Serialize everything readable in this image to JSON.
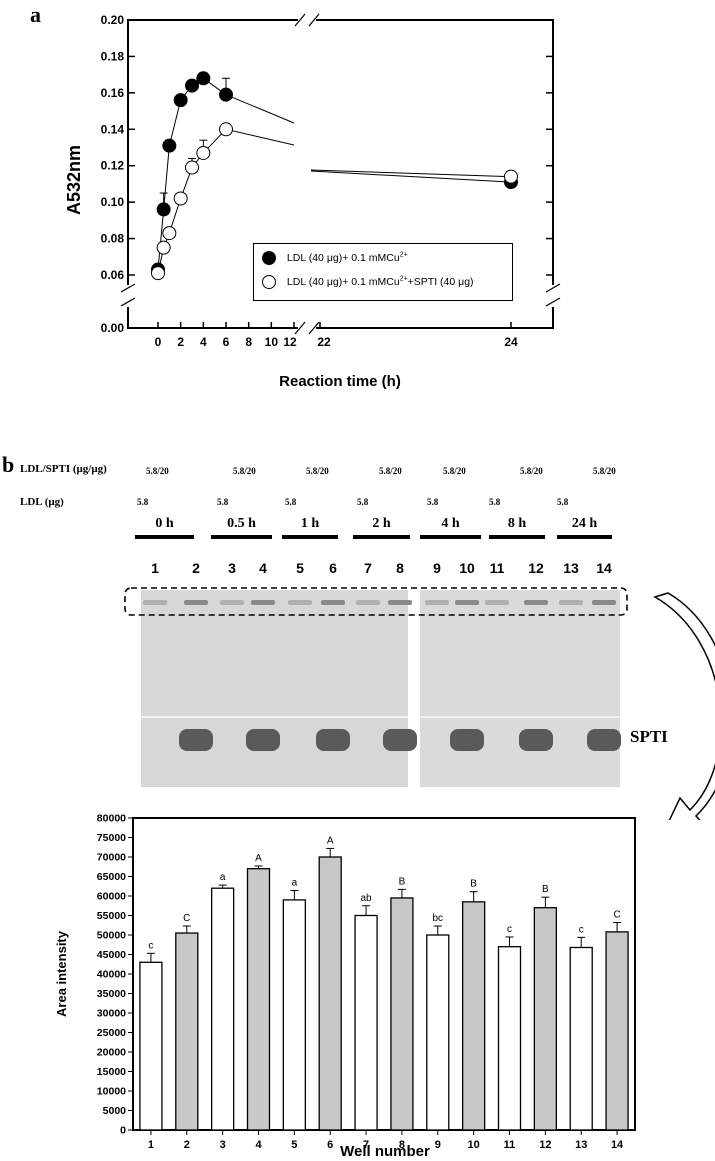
{
  "panel_a": {
    "label": "a",
    "chart_data": {
      "type": "line",
      "ylabel": "A532nm",
      "xlabel": "Reaction time (h)",
      "y_ticks": [
        "0.00",
        "0.06",
        "0.08",
        "0.10",
        "0.12",
        "0.14",
        "0.16",
        "0.18",
        "0.20"
      ],
      "x_ticks": [
        "0",
        "2",
        "4",
        "6",
        "8",
        "10",
        "12",
        "22",
        "24"
      ],
      "legend_position": "lower-right",
      "series": [
        {
          "name": "LDL (40 μg)+ 0.1 mMCu2+",
          "marker": "filled-circle",
          "color": "#000000",
          "x": [
            0,
            0.5,
            1,
            2,
            3,
            4,
            6,
            24
          ],
          "y": [
            0.063,
            0.096,
            0.131,
            0.156,
            0.164,
            0.168,
            0.159,
            0.111
          ],
          "err": [
            0.002,
            0.009,
            0.003,
            0.002,
            0.003,
            0.003,
            0.009,
            0.002
          ]
        },
        {
          "name": "LDL (40 μg)+ 0.1 mMCu2++SPTI (40 μg)",
          "marker": "open-circle",
          "color": "#000000",
          "x": [
            0,
            0.5,
            1,
            2,
            3,
            4,
            6,
            24
          ],
          "y": [
            0.061,
            0.075,
            0.083,
            0.102,
            0.119,
            0.127,
            0.14,
            0.114
          ],
          "err": [
            0.002,
            0.003,
            0.002,
            0.002,
            0.005,
            0.007,
            0.002,
            0.002
          ]
        }
      ]
    },
    "legend": {
      "s1_prefix": "LDL (40 ",
      "s1_mu": "μg)+ 0.1 mMCu",
      "s1_sup": "2+",
      "s2_prefix": "LDL (40 ",
      "s2_mu": "μg)+ 0.1 mMCu",
      "s2_sup": "2+",
      "s2_suffix": "+SPTI (40 μg)"
    }
  },
  "panel_b": {
    "label": "b",
    "row1_label": "LDL/SPTI (μg/μg)",
    "row2_label": "LDL (μg)",
    "ratio_values": [
      "5.8/20",
      "5.8/20",
      "5.8/20",
      "5.8/20",
      "5.8/20",
      "5.8/20",
      "5.8/20"
    ],
    "ldl_values": [
      "5.8",
      "5.8",
      "5.8",
      "5.8",
      "5.8",
      "5.8",
      "5.8"
    ],
    "time_groups": [
      "0 h",
      "0.5 h",
      "1 h",
      "2 h",
      "4 h",
      "8 h",
      "24 h"
    ],
    "lanes": [
      "1",
      "2",
      "3",
      "4",
      "5",
      "6",
      "7",
      "8",
      "9",
      "10",
      "11",
      "12",
      "13",
      "14"
    ],
    "band_label": "SPTI"
  },
  "panel_c": {
    "chart_data": {
      "type": "bar",
      "ylabel": "Area intensity",
      "xlabel": "Well number",
      "ylim": [
        0,
        80000
      ],
      "y_ticks": [
        "0",
        "5000",
        "10000",
        "15000",
        "20000",
        "25000",
        "30000",
        "35000",
        "40000",
        "45000",
        "50000",
        "55000",
        "60000",
        "65000",
        "70000",
        "75000",
        "80000"
      ],
      "categories": [
        "1",
        "2",
        "3",
        "4",
        "5",
        "6",
        "7",
        "8",
        "9",
        "10",
        "11",
        "12",
        "13",
        "14"
      ],
      "values": [
        43000,
        50500,
        62000,
        67000,
        59000,
        70000,
        55000,
        59500,
        50000,
        58500,
        47000,
        57000,
        46800,
        50800
      ],
      "errors": [
        2300,
        1800,
        800,
        700,
        2400,
        2200,
        2500,
        2200,
        2300,
        2600,
        2500,
        2700,
        2600,
        2400
      ],
      "letters": [
        "c",
        "C",
        "a",
        "A",
        "a",
        "A",
        "ab",
        "B",
        "bc",
        "B",
        "c",
        "B",
        "c",
        "C"
      ],
      "fill_colors": {
        "odd": "#ffffff",
        "even": "#c8c8c8"
      }
    }
  }
}
